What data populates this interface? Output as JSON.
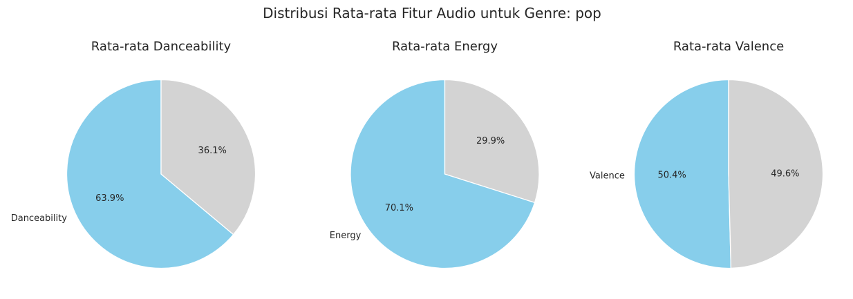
{
  "suptitle": "Distribusi Rata-rata Fitur Audio untuk Genre: pop",
  "colors": {
    "feature": "#87ceeb",
    "rest": "#d3d3d3",
    "edge": "#ffffff"
  },
  "chart_data": [
    {
      "type": "pie",
      "title": "Rata-rata Danceability",
      "slices": [
        {
          "label": "Danceability",
          "value": 63.9,
          "pct_label": "63.9%",
          "color": "#87ceeb"
        },
        {
          "label": "",
          "value": 36.1,
          "pct_label": "36.1%",
          "color": "#d3d3d3"
        }
      ]
    },
    {
      "type": "pie",
      "title": "Rata-rata Energy",
      "slices": [
        {
          "label": "Energy",
          "value": 70.1,
          "pct_label": "70.1%",
          "color": "#87ceeb"
        },
        {
          "label": "",
          "value": 29.9,
          "pct_label": "29.9%",
          "color": "#d3d3d3"
        }
      ]
    },
    {
      "type": "pie",
      "title": "Rata-rata Valence",
      "slices": [
        {
          "label": "Valence",
          "value": 50.4,
          "pct_label": "50.4%",
          "color": "#87ceeb"
        },
        {
          "label": "",
          "value": 49.6,
          "pct_label": "49.6%",
          "color": "#d3d3d3"
        }
      ]
    }
  ]
}
